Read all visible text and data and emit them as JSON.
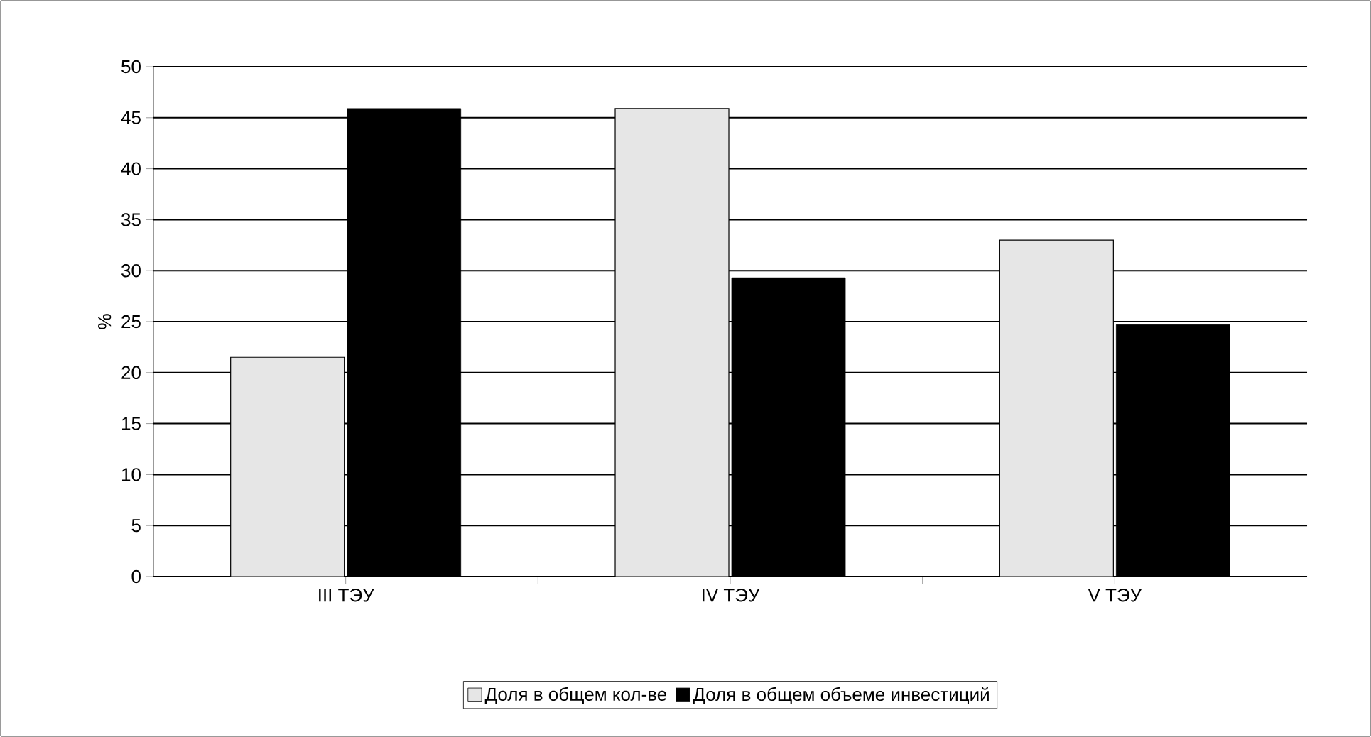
{
  "chart_data": {
    "type": "bar",
    "ylabel": "%",
    "categories": [
      "III ТЭУ",
      "IV ТЭУ",
      "V ТЭУ"
    ],
    "series": [
      {
        "name": "Доля в общем кол-ве",
        "color": "#e6e6e6",
        "values": [
          21.5,
          45.9,
          33.0
        ]
      },
      {
        "name": "Доля в общем объеме инвестиций",
        "color": "#000000",
        "values": [
          45.9,
          29.3,
          24.7
        ]
      }
    ],
    "ylim": [
      0,
      50
    ],
    "yticks": [
      0,
      5,
      10,
      15,
      20,
      25,
      30,
      35,
      40,
      45,
      50
    ],
    "grid": "y",
    "legend": "bottom"
  }
}
